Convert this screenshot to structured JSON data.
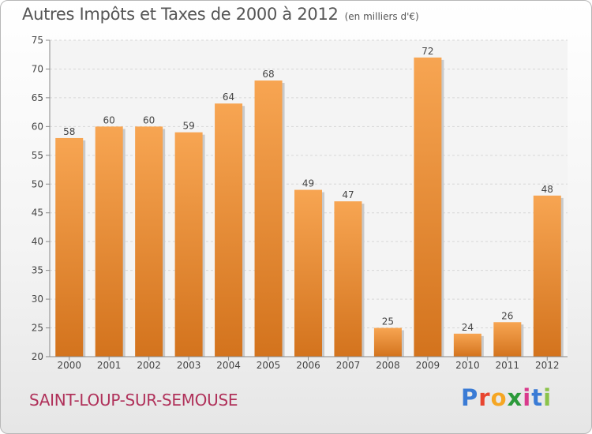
{
  "title": "Autres Impôts et Taxes de 2000 à 2012",
  "subtitle": "(en milliers d'€)",
  "city": "SAINT-LOUP-SUR-SEMOUSE",
  "brand": "Proxiti",
  "colors": {
    "bar_top": "#f7a552",
    "bar_bottom": "#d3731d",
    "city_text": "#b0315a"
  },
  "chart_data": {
    "type": "bar",
    "title": "Autres Impôts et Taxes de 2000 à 2012",
    "subtitle": "(en milliers d'€)",
    "xlabel": "",
    "ylabel": "",
    "categories": [
      "2000",
      "2001",
      "2002",
      "2003",
      "2004",
      "2005",
      "2006",
      "2007",
      "2008",
      "2009",
      "2010",
      "2011",
      "2012"
    ],
    "values": [
      58,
      60,
      60,
      59,
      64,
      68,
      49,
      47,
      25,
      72,
      24,
      26,
      48
    ],
    "ylim": [
      20,
      75
    ],
    "yticks": [
      20,
      25,
      30,
      35,
      40,
      45,
      50,
      55,
      60,
      65,
      70,
      75
    ],
    "grid": true,
    "legend": "none"
  }
}
